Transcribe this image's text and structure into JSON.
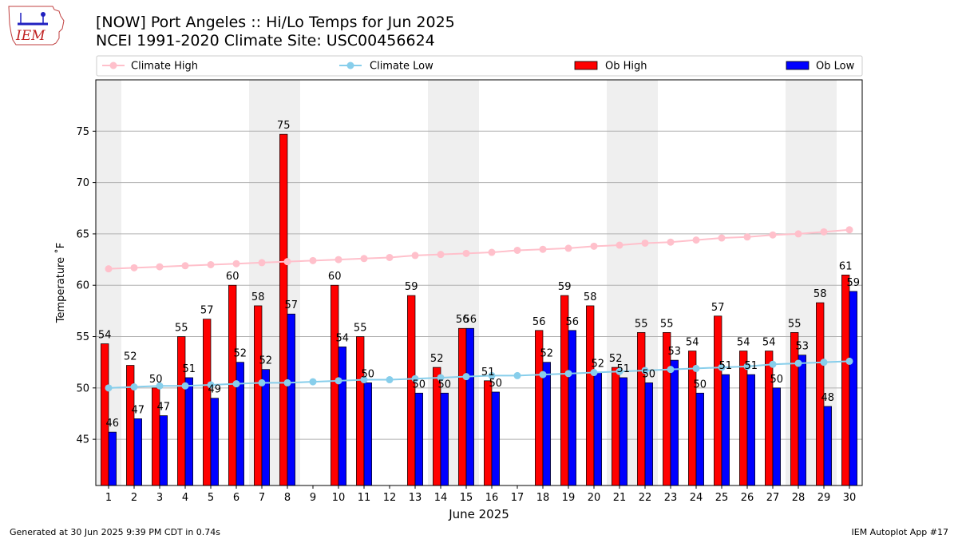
{
  "header": {
    "title_line1": "[NOW] Port Angeles :: Hi/Lo Temps for Jun 2025",
    "title_line2": "NCEI 1991-2020 Climate Site: USC00456624",
    "logo_text": "IEM"
  },
  "footer": {
    "left": "Generated at 30 Jun 2025 9:39 PM CDT in 0.74s",
    "right": "IEM Autoplot App #17"
  },
  "colors": {
    "ob_high": "#ff0000",
    "ob_low": "#0000ff",
    "climate_high": "#ffc0cb",
    "climate_low": "#87ceeb",
    "weekend_shade": "#efefef"
  },
  "chart_data": {
    "type": "bar",
    "xlabel": "June 2025",
    "ylabel": "Temperature ˚F",
    "ylim": [
      40.5,
      80
    ],
    "yticks": [
      45,
      50,
      55,
      60,
      65,
      70,
      75
    ],
    "grid": "horizontal",
    "legend_placement": "top",
    "shaded_days": [
      1,
      7,
      8,
      14,
      15,
      21,
      22,
      28,
      29
    ],
    "categories": [
      1,
      2,
      3,
      4,
      5,
      6,
      7,
      8,
      9,
      10,
      11,
      12,
      13,
      14,
      15,
      16,
      17,
      18,
      19,
      20,
      21,
      22,
      23,
      24,
      25,
      26,
      27,
      28,
      29,
      30
    ],
    "series": [
      {
        "name": "Climate High",
        "kind": "line",
        "values": [
          61.6,
          61.7,
          61.8,
          61.9,
          62.0,
          62.1,
          62.2,
          62.3,
          62.4,
          62.5,
          62.6,
          62.7,
          62.9,
          63.0,
          63.1,
          63.2,
          63.4,
          63.5,
          63.6,
          63.8,
          63.9,
          64.1,
          64.2,
          64.4,
          64.6,
          64.7,
          64.9,
          65.0,
          65.2,
          65.4
        ]
      },
      {
        "name": "Climate Low",
        "kind": "line",
        "values": [
          50.0,
          50.1,
          50.2,
          50.2,
          50.3,
          50.4,
          50.5,
          50.5,
          50.6,
          50.7,
          50.8,
          50.8,
          50.9,
          51.0,
          51.1,
          51.2,
          51.2,
          51.3,
          51.4,
          51.5,
          51.6,
          51.7,
          51.8,
          51.9,
          52.0,
          52.1,
          52.3,
          52.4,
          52.5,
          52.6
        ]
      },
      {
        "name": "Ob High",
        "kind": "bar",
        "values": [
          54.3,
          52.2,
          50.0,
          55.0,
          56.7,
          60.0,
          58.0,
          74.7,
          null,
          60.0,
          55.0,
          null,
          59.0,
          52.0,
          55.8,
          50.7,
          null,
          55.6,
          59.0,
          58.0,
          52.0,
          55.4,
          55.4,
          53.6,
          57.0,
          53.6,
          53.6,
          55.4,
          58.3,
          61.0
        ],
        "labels": [
          "54",
          "52",
          "50",
          "55",
          "57",
          "60",
          "58",
          "75",
          "",
          "60",
          "55",
          "",
          "59",
          "52",
          "56",
          "51",
          "",
          "56",
          "59",
          "58",
          "52",
          "55",
          "55",
          "54",
          "57",
          "54",
          "54",
          "55",
          "58",
          "61"
        ]
      },
      {
        "name": "Ob Low",
        "kind": "bar",
        "values": [
          45.7,
          47.0,
          47.3,
          51.0,
          49.0,
          52.5,
          51.8,
          57.2,
          null,
          54.0,
          50.5,
          null,
          49.5,
          49.5,
          55.8,
          49.6,
          null,
          52.5,
          55.6,
          51.5,
          51.0,
          50.5,
          52.7,
          49.5,
          51.3,
          51.3,
          50.0,
          53.2,
          48.2,
          59.4
        ],
        "labels": [
          "46",
          "47",
          "47",
          "51",
          "49",
          "52",
          "52",
          "57",
          "",
          "54",
          "50",
          "",
          "50",
          "50",
          "56",
          "50",
          "",
          "52",
          "56",
          "52",
          "51",
          "50",
          "53",
          "50",
          "51",
          "51",
          "50",
          "53",
          "48",
          "59"
        ]
      }
    ]
  }
}
